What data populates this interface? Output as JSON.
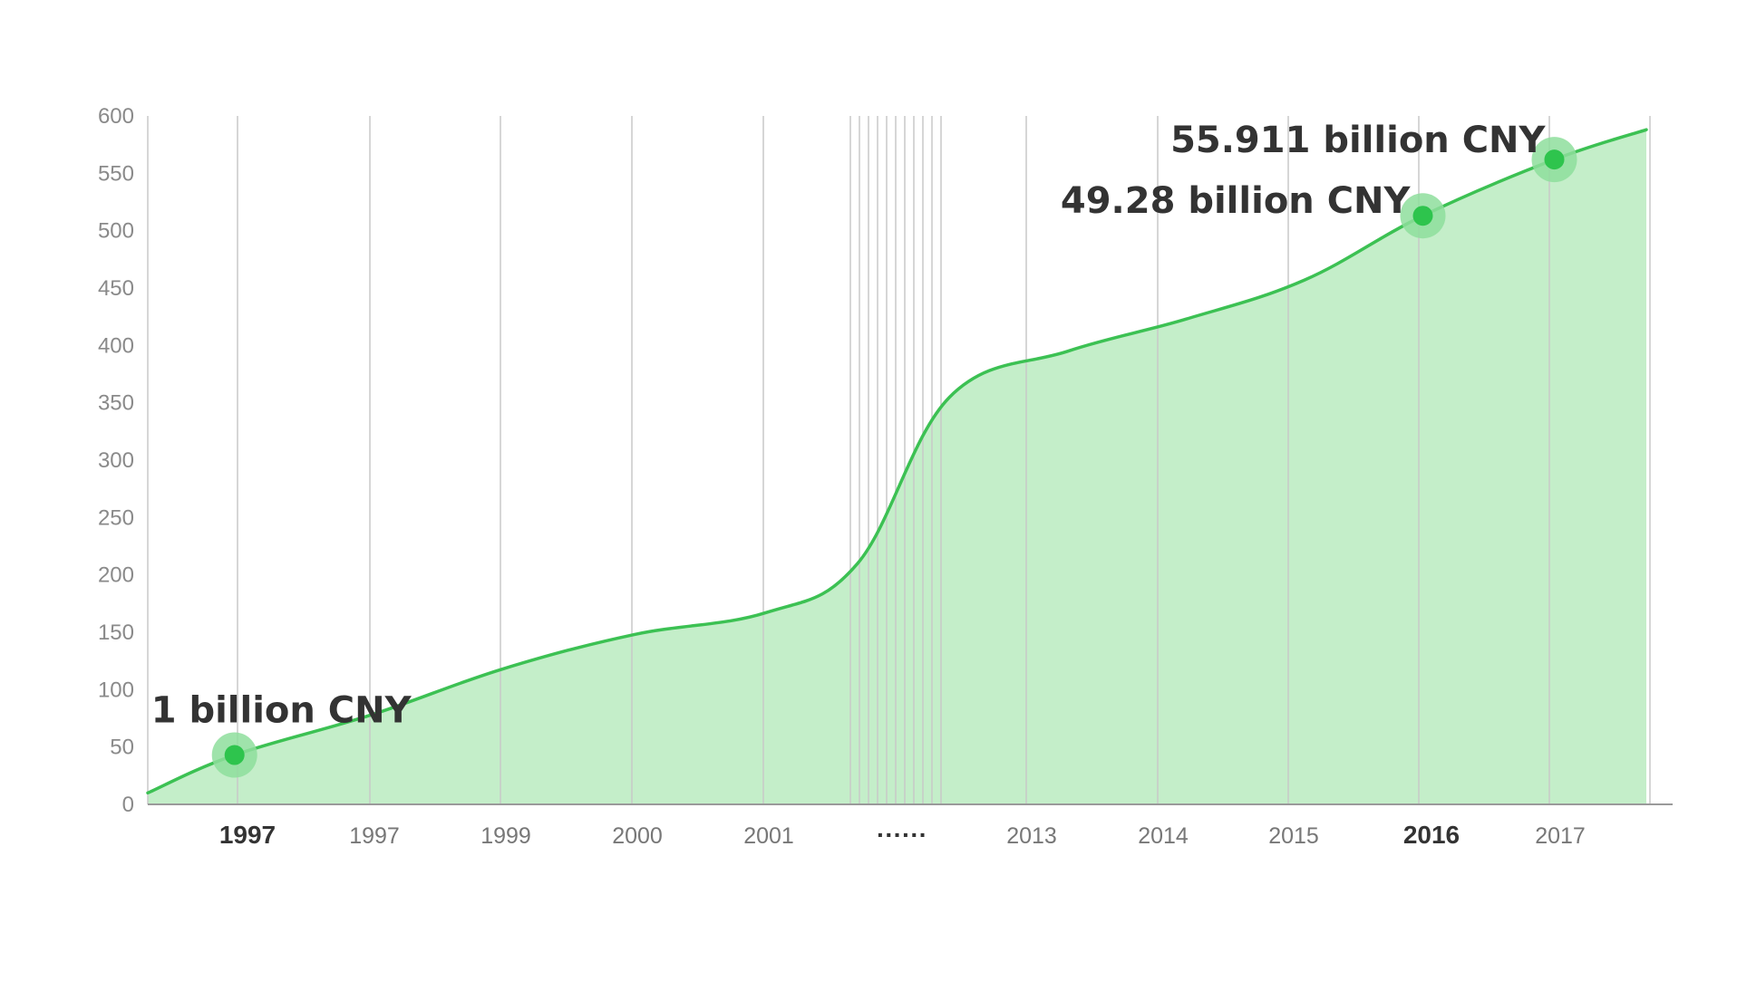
{
  "chart_data": {
    "type": "area",
    "title": "",
    "xlabel": "",
    "ylabel": "",
    "ylim": [
      0,
      600
    ],
    "y_ticks": [
      "0",
      "50",
      "100",
      "150",
      "200",
      "250",
      "300",
      "350",
      "400",
      "450",
      "500",
      "550",
      "600"
    ],
    "grid": "vertical",
    "x_tick_labels": [
      {
        "text": "1997",
        "bold": true
      },
      {
        "text": "1997",
        "bold": false
      },
      {
        "text": "1999",
        "bold": false
      },
      {
        "text": "2000",
        "bold": false
      },
      {
        "text": "2001",
        "bold": false
      },
      {
        "text": "······",
        "bold": true
      },
      {
        "text": "2013",
        "bold": false
      },
      {
        "text": "2014",
        "bold": false
      },
      {
        "text": "2015",
        "bold": false
      },
      {
        "text": "2016",
        "bold": true
      },
      {
        "text": "2017",
        "bold": false
      }
    ],
    "series": [
      {
        "values": [
          {
            "x": 0.0,
            "y": 10
          },
          {
            "x": 0.66,
            "y": 43
          },
          {
            "x": 1.7,
            "y": 78
          },
          {
            "x": 2.7,
            "y": 118
          },
          {
            "x": 3.7,
            "y": 148
          },
          {
            "x": 4.7,
            "y": 167
          },
          {
            "x": 5.4,
            "y": 210
          },
          {
            "x": 6.1,
            "y": 355
          },
          {
            "x": 7.0,
            "y": 395
          },
          {
            "x": 7.9,
            "y": 423
          },
          {
            "x": 8.8,
            "y": 457
          },
          {
            "x": 9.7,
            "y": 513
          },
          {
            "x": 10.7,
            "y": 562
          },
          {
            "x": 11.4,
            "y": 588
          }
        ]
      }
    ],
    "annotations": [
      {
        "text": "1 billion CNY",
        "x": 0.66,
        "y": 43
      },
      {
        "text": "49.28 billion CNY",
        "x": 9.7,
        "y": 513
      },
      {
        "text": "55.911 billion CNY",
        "x": 10.7,
        "y": 562
      }
    ],
    "colors": {
      "line": "#3cc153",
      "fill": "#c4eec9",
      "marker": "#2ec44d",
      "marker_halo": "#8ede9c"
    }
  }
}
